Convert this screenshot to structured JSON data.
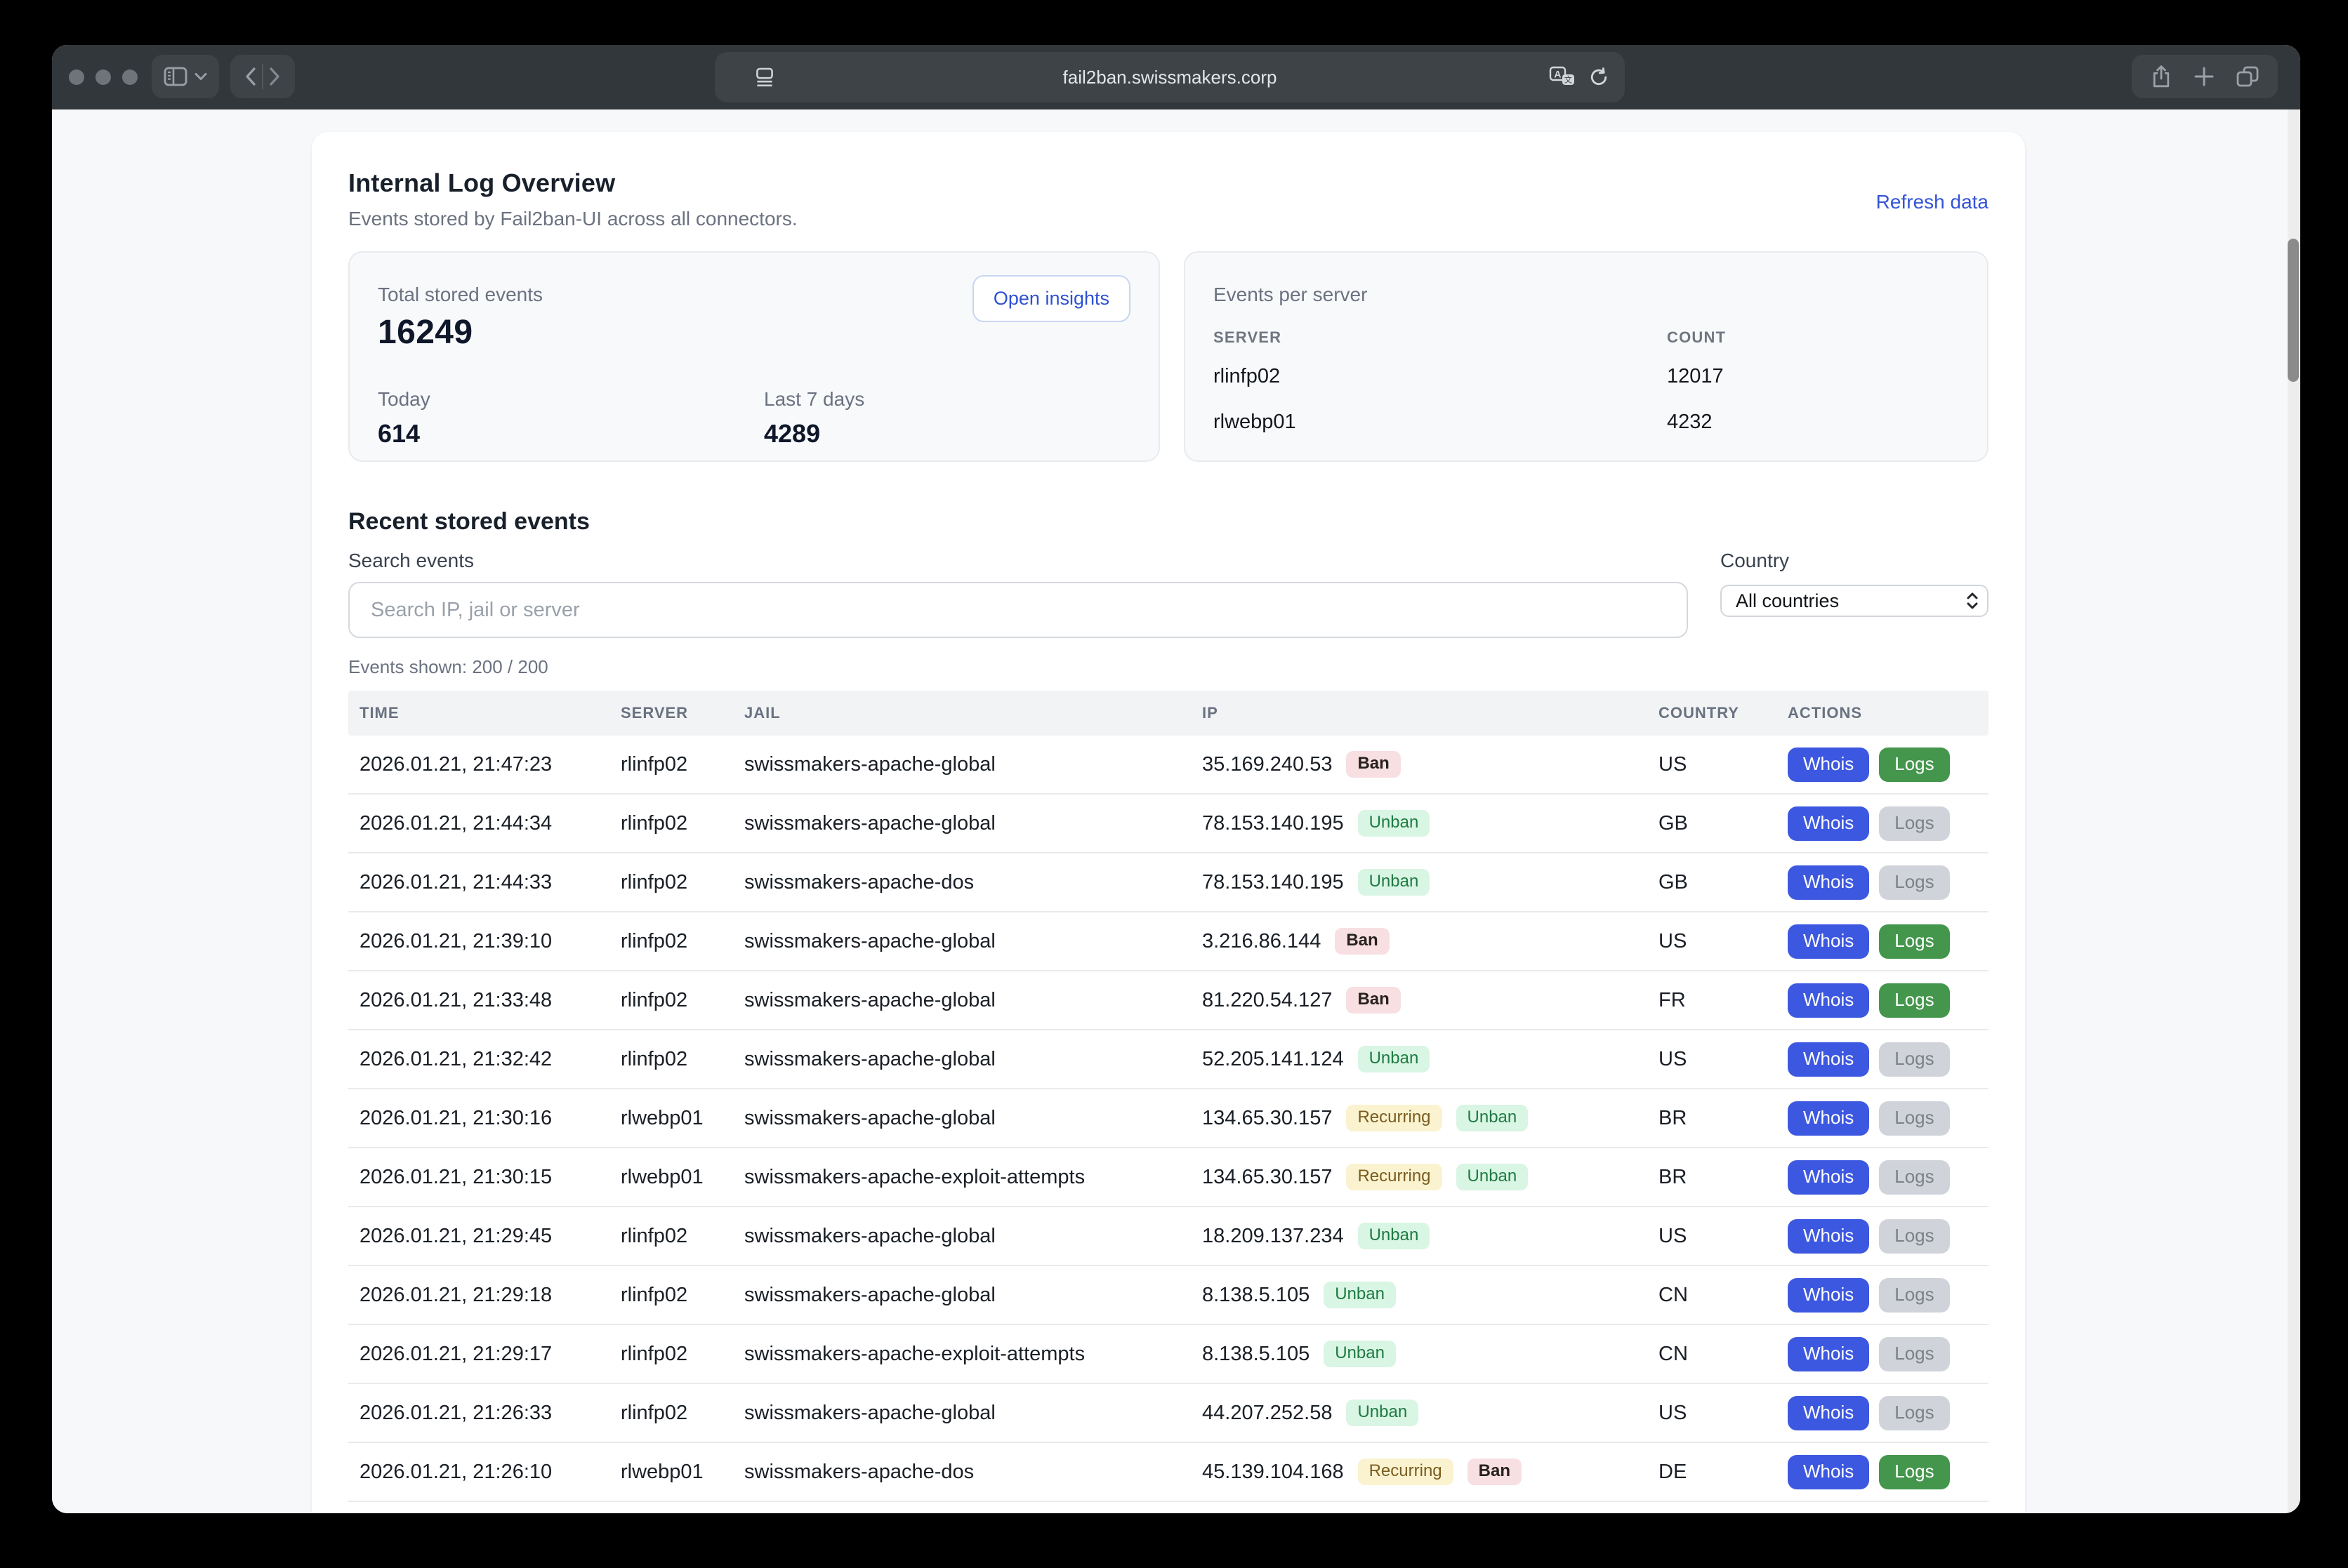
{
  "browser": {
    "url": "fail2ban.swissmakers.corp",
    "icons": [
      "sidebar-icon",
      "chevron-down-icon",
      "back-icon",
      "forward-icon",
      "reader-icon",
      "translate-icon",
      "reload-icon",
      "share-icon",
      "new-tab-icon",
      "tabs-overview-icon"
    ]
  },
  "colors": {
    "titlebar_bg": "#32373b",
    "accent_blue": "#3453d6",
    "whois_blue": "#3d58e0",
    "logs_green": "#44964c",
    "logs_disabled_bg": "#d0d4da",
    "ban_bg": "#f8dfe2",
    "unban_bg": "#d9f5e3",
    "unban_text": "#1f7a43",
    "recurring_bg": "#fbf3cf",
    "recurring_text": "#795c21"
  },
  "page": {
    "title": "Internal Log Overview",
    "subtitle": "Events stored by Fail2ban-UI across all connectors.",
    "refresh_link": "Refresh data",
    "stats": {
      "total_label": "Total stored events",
      "total_value": "16249",
      "open_insights_label": "Open insights",
      "today_label": "Today",
      "today_value": "614",
      "last7_label": "Last 7 days",
      "last7_value": "4289"
    },
    "per_server": {
      "title": "Events per server",
      "col_server": "SERVER",
      "col_count": "COUNT",
      "rows": [
        {
          "server": "rlinfp02",
          "count": "12017"
        },
        {
          "server": "rlwebp01",
          "count": "4232"
        }
      ]
    },
    "events": {
      "heading": "Recent stored events",
      "search_label": "Search events",
      "search_placeholder": "Search IP, jail or server",
      "country_label": "Country",
      "country_value": "All countries",
      "shown_text": "Events shown: 200 / 200",
      "columns": [
        "TIME",
        "SERVER",
        "JAIL",
        "IP",
        "COUNTRY",
        "ACTIONS"
      ],
      "whois_label": "Whois",
      "logs_label": "Logs",
      "rows": [
        {
          "time": "2026.01.21, 21:47:23",
          "server": "rlinfp02",
          "jail": "swissmakers-apache-global",
          "ip": "35.169.240.53",
          "badges": [
            "Ban"
          ],
          "country": "US",
          "logs_active": true
        },
        {
          "time": "2026.01.21, 21:44:34",
          "server": "rlinfp02",
          "jail": "swissmakers-apache-global",
          "ip": "78.153.140.195",
          "badges": [
            "Unban"
          ],
          "country": "GB",
          "logs_active": false
        },
        {
          "time": "2026.01.21, 21:44:33",
          "server": "rlinfp02",
          "jail": "swissmakers-apache-dos",
          "ip": "78.153.140.195",
          "badges": [
            "Unban"
          ],
          "country": "GB",
          "logs_active": false
        },
        {
          "time": "2026.01.21, 21:39:10",
          "server": "rlinfp02",
          "jail": "swissmakers-apache-global",
          "ip": "3.216.86.144",
          "badges": [
            "Ban"
          ],
          "country": "US",
          "logs_active": true
        },
        {
          "time": "2026.01.21, 21:33:48",
          "server": "rlinfp02",
          "jail": "swissmakers-apache-global",
          "ip": "81.220.54.127",
          "badges": [
            "Ban"
          ],
          "country": "FR",
          "logs_active": true
        },
        {
          "time": "2026.01.21, 21:32:42",
          "server": "rlinfp02",
          "jail": "swissmakers-apache-global",
          "ip": "52.205.141.124",
          "badges": [
            "Unban"
          ],
          "country": "US",
          "logs_active": false
        },
        {
          "time": "2026.01.21, 21:30:16",
          "server": "rlwebp01",
          "jail": "swissmakers-apache-global",
          "ip": "134.65.30.157",
          "badges": [
            "Recurring",
            "Unban"
          ],
          "country": "BR",
          "logs_active": false
        },
        {
          "time": "2026.01.21, 21:30:15",
          "server": "rlwebp01",
          "jail": "swissmakers-apache-exploit-attempts",
          "ip": "134.65.30.157",
          "badges": [
            "Recurring",
            "Unban"
          ],
          "country": "BR",
          "logs_active": false
        },
        {
          "time": "2026.01.21, 21:29:45",
          "server": "rlinfp02",
          "jail": "swissmakers-apache-global",
          "ip": "18.209.137.234",
          "badges": [
            "Unban"
          ],
          "country": "US",
          "logs_active": false
        },
        {
          "time": "2026.01.21, 21:29:18",
          "server": "rlinfp02",
          "jail": "swissmakers-apache-global",
          "ip": "8.138.5.105",
          "badges": [
            "Unban"
          ],
          "country": "CN",
          "logs_active": false
        },
        {
          "time": "2026.01.21, 21:29:17",
          "server": "rlinfp02",
          "jail": "swissmakers-apache-exploit-attempts",
          "ip": "8.138.5.105",
          "badges": [
            "Unban"
          ],
          "country": "CN",
          "logs_active": false
        },
        {
          "time": "2026.01.21, 21:26:33",
          "server": "rlinfp02",
          "jail": "swissmakers-apache-global",
          "ip": "44.207.252.58",
          "badges": [
            "Unban"
          ],
          "country": "US",
          "logs_active": false
        },
        {
          "time": "2026.01.21, 21:26:10",
          "server": "rlwebp01",
          "jail": "swissmakers-apache-dos",
          "ip": "45.139.104.168",
          "badges": [
            "Recurring",
            "Ban"
          ],
          "country": "DE",
          "logs_active": true
        }
      ]
    }
  }
}
